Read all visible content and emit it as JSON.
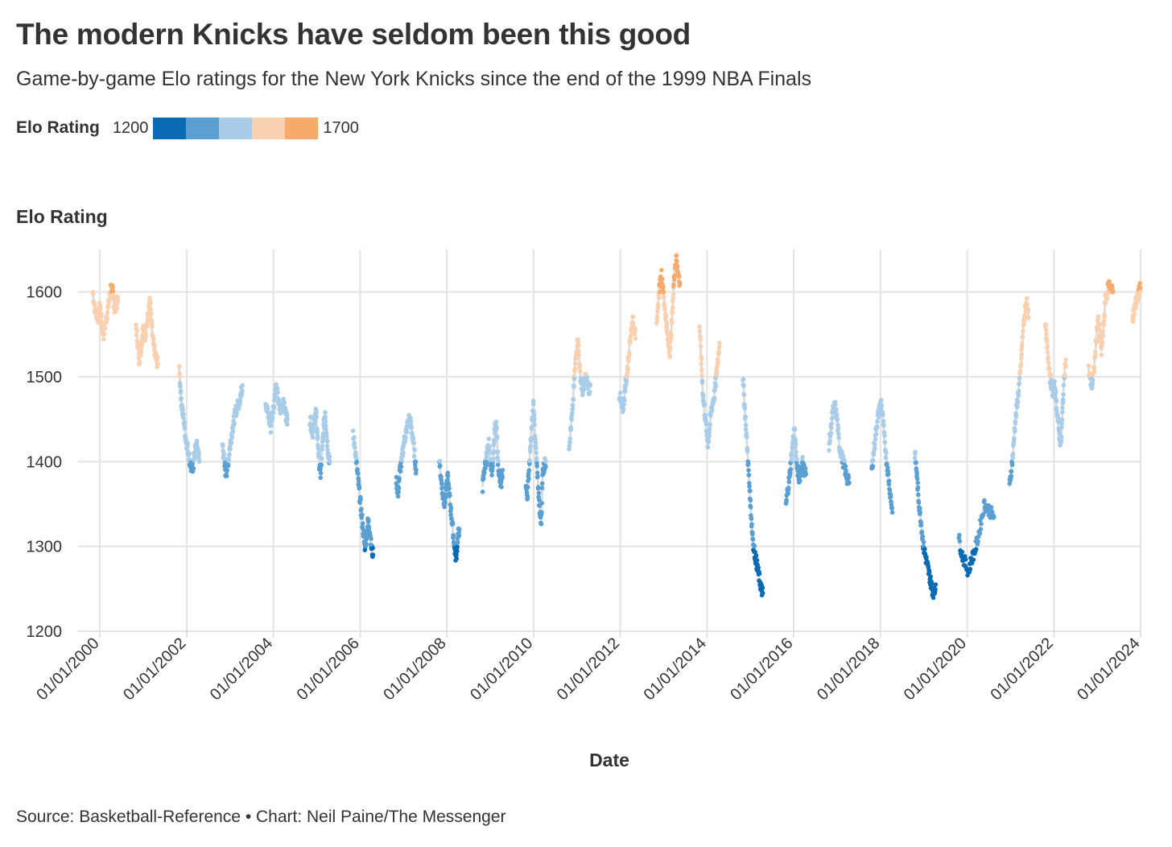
{
  "title": "The modern Knicks have seldom been this good",
  "subtitle": "Game-by-game Elo ratings for the New York Knicks since the end of the 1999 NBA Finals",
  "legend": {
    "title": "Elo Rating",
    "min_label": "1200",
    "max_label": "1700",
    "colors": [
      "#0b6ab4",
      "#5a9fd1",
      "#a9cde8",
      "#f9d1b1",
      "#f6aa6c"
    ]
  },
  "source": "Source: Basketball-Reference • Chart: Neil Paine/The Messenger",
  "chart_data": {
    "type": "scatter",
    "ylabel": "Elo Rating",
    "xlabel": "Date",
    "ylim": [
      1200,
      1650
    ],
    "y_ticks": [
      1200,
      1300,
      1400,
      1500,
      1600
    ],
    "x_range": [
      "1999-07-01",
      "2024-01-01"
    ],
    "x_ticks": [
      "2000-01-01",
      "2002-01-01",
      "2004-01-01",
      "2006-01-01",
      "2008-01-01",
      "2010-01-01",
      "2012-01-01",
      "2014-01-01",
      "2016-01-01",
      "2018-01-01",
      "2020-01-01",
      "2022-01-01",
      "2024-01-01"
    ],
    "x_tick_labels": [
      "01/01/2000",
      "01/01/2002",
      "01/01/2004",
      "01/01/2006",
      "01/01/2008",
      "01/01/2010",
      "01/01/2012",
      "01/01/2014",
      "01/01/2016",
      "01/01/2018",
      "01/01/2020",
      "01/01/2022",
      "01/01/2024"
    ],
    "grid": true,
    "color_scale": {
      "min": 1200,
      "max": 1700,
      "colors": [
        "#0b6ab4",
        "#5a9fd1",
        "#a9cde8",
        "#f9d1b1",
        "#f6aa6c"
      ]
    },
    "seasons": [
      {
        "start": "1999-11-02",
        "end": "2000-06-02",
        "elo": [
          1600,
          1580,
          1575,
          1570,
          1585,
          1560,
          1550,
          1565,
          1575,
          1590,
          1605,
          1600,
          1580,
          1585,
          1590
        ]
      },
      {
        "start": "2000-10-31",
        "end": "2001-05-03",
        "elo": [
          1560,
          1540,
          1520,
          1530,
          1550,
          1560,
          1545,
          1565,
          1580,
          1590,
          1560,
          1540,
          1530,
          1520,
          1515
        ]
      },
      {
        "start": "2001-10-30",
        "end": "2002-04-17",
        "elo": [
          1510,
          1480,
          1460,
          1450,
          1430,
          1420,
          1410,
          1400,
          1390,
          1395,
          1410,
          1420,
          1415,
          1400
        ]
      },
      {
        "start": "2002-10-30",
        "end": "2003-04-16",
        "elo": [
          1420,
          1400,
          1385,
          1395,
          1410,
          1425,
          1440,
          1450,
          1460,
          1465,
          1470,
          1480,
          1490
        ]
      },
      {
        "start": "2003-10-28",
        "end": "2004-04-29",
        "elo": [
          1470,
          1460,
          1450,
          1440,
          1455,
          1470,
          1490,
          1480,
          1465,
          1460,
          1470,
          1465,
          1455,
          1450
        ]
      },
      {
        "start": "2004-11-03",
        "end": "2005-04-20",
        "elo": [
          1450,
          1440,
          1435,
          1450,
          1460,
          1430,
          1400,
          1385,
          1410,
          1440,
          1460,
          1430,
          1410,
          1400
        ]
      },
      {
        "start": "2005-11-02",
        "end": "2006-04-19",
        "elo": [
          1430,
          1420,
          1400,
          1380,
          1360,
          1340,
          1320,
          1300,
          1310,
          1330,
          1320,
          1300,
          1290
        ]
      },
      {
        "start": "2006-11-01",
        "end": "2007-04-18",
        "elo": [
          1380,
          1360,
          1390,
          1400,
          1420,
          1430,
          1440,
          1450,
          1445,
          1430,
          1410,
          1390
        ]
      },
      {
        "start": "2007-10-31",
        "end": "2008-04-16",
        "elo": [
          1400,
          1380,
          1360,
          1350,
          1370,
          1380,
          1360,
          1340,
          1320,
          1300,
          1285,
          1310,
          1320
        ]
      },
      {
        "start": "2008-10-29",
        "end": "2009-04-15",
        "elo": [
          1370,
          1390,
          1400,
          1410,
          1420,
          1400,
          1390,
          1410,
          1440,
          1440,
          1400,
          1380,
          1370,
          1390
        ]
      },
      {
        "start": "2009-10-28",
        "end": "2010-04-14",
        "elo": [
          1370,
          1360,
          1390,
          1420,
          1445,
          1465,
          1430,
          1400,
          1370,
          1340,
          1330,
          1390,
          1395,
          1400
        ]
      },
      {
        "start": "2010-10-27",
        "end": "2011-04-24",
        "elo": [
          1420,
          1440,
          1460,
          1500,
          1530,
          1545,
          1510,
          1490,
          1480,
          1500,
          1495,
          1485,
          1490
        ]
      },
      {
        "start": "2011-12-25",
        "end": "2012-05-09",
        "elo": [
          1480,
          1470,
          1460,
          1470,
          1490,
          1500,
          1520,
          1540,
          1555,
          1565,
          1560,
          1545
        ]
      },
      {
        "start": "2012-11-02",
        "end": "2013-05-18",
        "elo": [
          1560,
          1590,
          1610,
          1620,
          1600,
          1580,
          1560,
          1540,
          1530,
          1560,
          1600,
          1630,
          1640,
          1620,
          1610
        ]
      },
      {
        "start": "2013-10-30",
        "end": "2014-04-16",
        "elo": [
          1560,
          1520,
          1480,
          1460,
          1440,
          1420,
          1440,
          1460,
          1470,
          1480,
          1500,
          1520,
          1540
        ]
      },
      {
        "start": "2014-10-30",
        "end": "2015-04-15",
        "elo": [
          1500,
          1470,
          1440,
          1410,
          1380,
          1350,
          1320,
          1300,
          1290,
          1280,
          1270,
          1260,
          1250,
          1245
        ]
      },
      {
        "start": "2015-10-28",
        "end": "2016-04-13",
        "elo": [
          1350,
          1365,
          1380,
          1400,
          1420,
          1440,
          1410,
          1390,
          1380,
          1390,
          1400,
          1390,
          1385
        ]
      },
      {
        "start": "2016-10-25",
        "end": "2017-04-12",
        "elo": [
          1420,
          1440,
          1460,
          1465,
          1450,
          1420,
          1410,
          1400,
          1390,
          1380,
          1375
        ]
      },
      {
        "start": "2017-10-19",
        "end": "2018-04-11",
        "elo": [
          1390,
          1410,
          1430,
          1450,
          1460,
          1470,
          1450,
          1420,
          1400,
          1380,
          1360,
          1340
        ]
      },
      {
        "start": "2018-10-17",
        "end": "2019-04-10",
        "elo": [
          1410,
          1390,
          1360,
          1340,
          1320,
          1300,
          1290,
          1280,
          1270,
          1260,
          1250,
          1245,
          1255
        ]
      },
      {
        "start": "2019-10-23",
        "end": "2020-08-14",
        "elo": [
          1310,
          1290,
          1280,
          1270,
          1285,
          1295,
          1310,
          1330,
          1350,
          1345,
          1340,
          1335
        ]
      },
      {
        "start": "2020-12-23",
        "end": "2021-06-02",
        "elo": [
          1370,
          1390,
          1410,
          1440,
          1460,
          1480,
          1500,
          1530,
          1560,
          1580,
          1590,
          1570
        ]
      },
      {
        "start": "2021-10-20",
        "end": "2022-04-10",
        "elo": [
          1560,
          1540,
          1520,
          1500,
          1490,
          1480,
          1490,
          1470,
          1450,
          1430,
          1420,
          1460,
          1500,
          1520
        ]
      },
      {
        "start": "2022-10-19",
        "end": "2023-05-12",
        "elo": [
          1510,
          1495,
          1490,
          1510,
          1540,
          1570,
          1550,
          1530,
          1560,
          1590,
          1600,
          1610,
          1605,
          1600
        ]
      },
      {
        "start": "2023-10-25",
        "end": "2023-12-30",
        "elo": [
          1570,
          1575,
          1585,
          1590,
          1595,
          1600,
          1605
        ]
      }
    ]
  }
}
